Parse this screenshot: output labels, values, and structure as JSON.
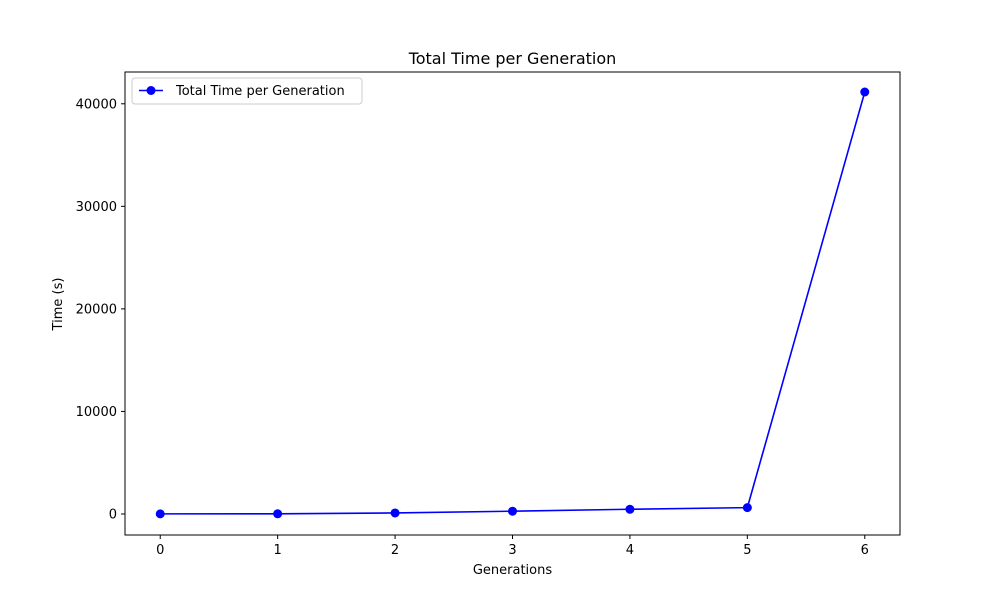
{
  "chart_data": {
    "type": "line",
    "title": "Total Time per Generation",
    "xlabel": "Generations",
    "ylabel": "Time (s)",
    "x": [
      0,
      1,
      2,
      3,
      4,
      5,
      6
    ],
    "xlim": [
      -0.3,
      6.3
    ],
    "ylim": [
      -2050,
      43100
    ],
    "xticks": [
      0,
      1,
      2,
      3,
      4,
      5,
      6
    ],
    "yticks": [
      0,
      10000,
      20000,
      30000,
      40000
    ],
    "grid": false,
    "legend_position": "top-left",
    "series": [
      {
        "name": "Total Time per Generation",
        "color": "#0000ff",
        "marker": "circle",
        "values": [
          10,
          20,
          100,
          270,
          460,
          620,
          41150
        ]
      }
    ]
  }
}
